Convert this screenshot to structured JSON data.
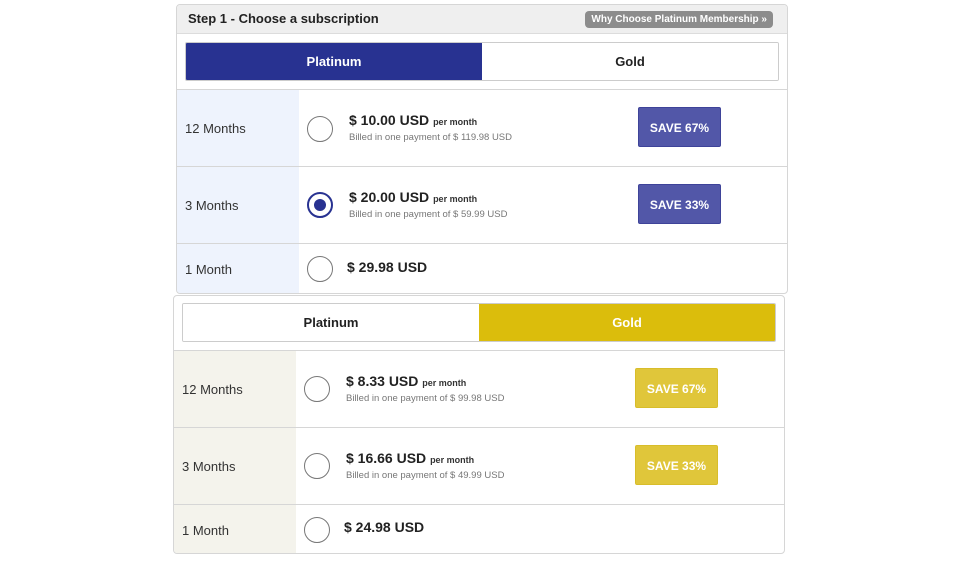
{
  "step_title": "Step 1 - Choose a subscription",
  "why_link": "Why Choose Platinum Membership »",
  "colors": {
    "platinum": "#283291",
    "gold": "#dbbd0c",
    "platinum_save": "#5257a8",
    "gold_save": "#e0c63a"
  },
  "panels": [
    {
      "tabs": [
        "Platinum",
        "Gold"
      ],
      "active_tab": "Platinum",
      "selected": "3 Months",
      "rows": [
        {
          "label": "12 Months",
          "price": "$ 10.00 USD",
          "per": "per month",
          "billed": "Billed in one payment of $ 119.98 USD",
          "save": "SAVE 67%"
        },
        {
          "label": "3 Months",
          "price": "$ 20.00 USD",
          "per": "per month",
          "billed": "Billed in one payment of $ 59.99 USD",
          "save": "SAVE 33%"
        },
        {
          "label": "1 Month",
          "price": "$ 29.98 USD"
        }
      ]
    },
    {
      "tabs": [
        "Platinum",
        "Gold"
      ],
      "active_tab": "Gold",
      "selected": null,
      "rows": [
        {
          "label": "12 Months",
          "price": "$ 8.33 USD",
          "per": "per month",
          "billed": "Billed in one payment of $ 99.98 USD",
          "save": "SAVE 67%"
        },
        {
          "label": "3 Months",
          "price": "$ 16.66 USD",
          "per": "per month",
          "billed": "Billed in one payment of $ 49.99 USD",
          "save": "SAVE 33%"
        },
        {
          "label": "1 Month",
          "price": "$ 24.98 USD"
        }
      ]
    }
  ]
}
